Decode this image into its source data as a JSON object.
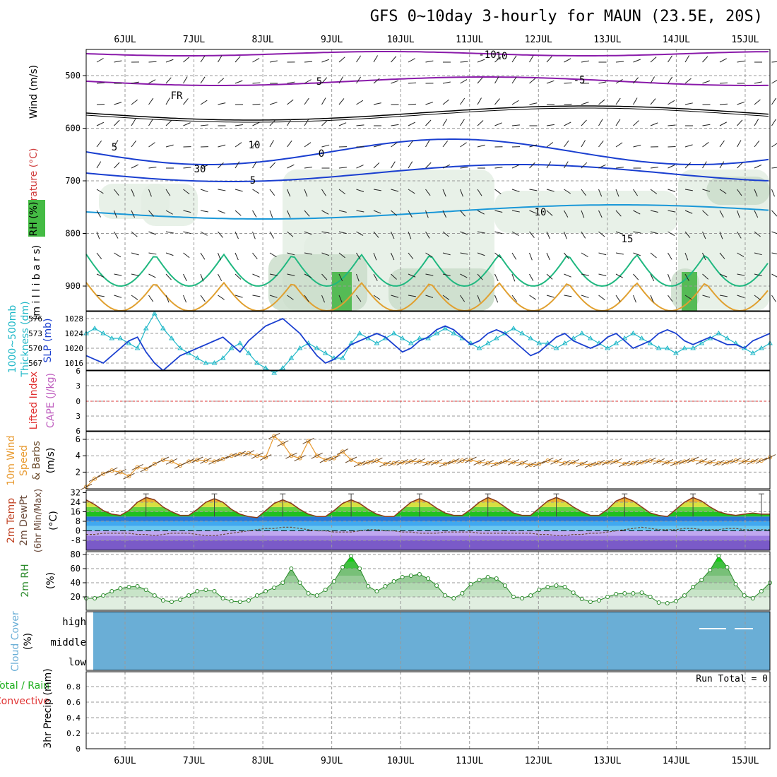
{
  "title": "GFS 0~10day 3-hourly for MAUN (23.5E, 20S)",
  "dates": [
    "6JUL",
    "7JUL",
    "8JUL",
    "9JUL",
    "10JUL",
    "11JUL",
    "12JUL",
    "13JUL",
    "14JUL",
    "15JUL"
  ],
  "panels": {
    "upper": {
      "labels": [
        "RH (%)",
        "Temperature (°C)",
        "Wind (m/s)",
        "(m i l l i b a r s)"
      ],
      "y_ticks": [
        500,
        600,
        700,
        800,
        900
      ],
      "contour_labels": [
        "10",
        "5",
        "FR",
        "5",
        "5",
        "10",
        "15",
        "-5",
        "-10",
        "30",
        "10",
        "0"
      ]
    },
    "slp": {
      "labels": [
        "1000~500mb",
        "Thickness (dm)",
        "SLP (mb)"
      ],
      "left_ticks": [
        576,
        573,
        570,
        567
      ],
      "right_ticks": [
        1028,
        1024,
        1020,
        1016
      ]
    },
    "cape": {
      "labels": [
        "Lifted Index",
        "CAPE (J/kg)"
      ],
      "ticks": [
        "6",
        "3",
        "0",
        "3",
        "6"
      ]
    },
    "wind10": {
      "labels": [
        "10m Wind",
        "Speed",
        "& Barbs",
        "(m/s)"
      ],
      "ticks": [
        6,
        4,
        2
      ]
    },
    "temp": {
      "labels": [
        "2m Temp",
        "2m DewPt",
        "(6hr Min/Max)",
        "(°C)"
      ],
      "ticks": [
        32,
        24,
        16,
        8,
        0,
        -8
      ]
    },
    "rh": {
      "labels": [
        "2m RH",
        "(%)"
      ],
      "ticks": [
        80,
        60,
        40,
        20
      ]
    },
    "cloud": {
      "labels": [
        "Cloud Cover",
        "(%)"
      ],
      "levels": [
        "high",
        "middle",
        "low"
      ]
    },
    "precip": {
      "labels": [
        "Total / Rain",
        "Convective",
        "3hr Precip (mm)"
      ],
      "run_total": "Run Total = 0",
      "ticks": [
        "0.8",
        "0.6",
        "0.4",
        "0.2",
        "0"
      ]
    }
  },
  "colors": {
    "thickness": "#20b8c8",
    "slp": "#1a3fd0",
    "wind": "#e89a30",
    "temp_line": "#8a3a1a",
    "rh_line": "#2a8a2a",
    "cloud": "#6aaed6"
  },
  "chart_data": [
    {
      "type": "line",
      "title": "1000~500mb Thickness / SLP",
      "series": [
        {
          "name": "1000~500mb Thickness (dm)",
          "values": [
            573,
            574,
            573,
            572,
            572,
            571,
            570,
            574,
            577,
            574,
            572,
            570,
            569,
            568,
            567,
            567,
            568,
            570,
            571,
            569,
            567,
            566,
            565,
            566,
            568,
            570,
            571,
            570,
            569,
            568,
            568,
            571,
            573,
            572,
            571,
            572,
            573,
            572,
            571,
            572,
            572,
            573,
            574,
            573,
            572,
            571,
            570,
            571,
            572,
            573,
            574,
            573,
            572,
            571,
            571,
            570,
            571,
            572,
            573,
            572,
            571,
            570,
            571,
            572,
            573,
            572,
            571,
            570,
            570,
            569,
            570,
            570,
            571,
            572,
            573,
            572,
            571,
            570,
            569,
            570,
            571
          ]
        },
        {
          "name": "SLP (mb)",
          "values": [
            1018,
            1017,
            1016,
            1018,
            1020,
            1022,
            1023,
            1019,
            1016,
            1014,
            1016,
            1018,
            1019,
            1020,
            1021,
            1022,
            1023,
            1021,
            1019,
            1022,
            1024,
            1026,
            1027,
            1028,
            1026,
            1024,
            1021,
            1018,
            1016,
            1017,
            1019,
            1021,
            1022,
            1023,
            1024,
            1023,
            1021,
            1019,
            1020,
            1022,
            1023,
            1025,
            1026,
            1025,
            1023,
            1021,
            1022,
            1024,
            1025,
            1024,
            1022,
            1020,
            1018,
            1019,
            1021,
            1023,
            1024,
            1022,
            1021,
            1020,
            1021,
            1023,
            1024,
            1022,
            1020,
            1021,
            1022,
            1024,
            1025,
            1024,
            1022,
            1021,
            1022,
            1023,
            1022,
            1021,
            1021,
            1020,
            1022,
            1023,
            1024
          ]
        }
      ]
    },
    {
      "type": "line",
      "title": "10m Wind Speed (m/s)",
      "series": [
        {
          "name": "10m Wind Speed",
          "values": [
            0.2,
            1.2,
            1.8,
            2.2,
            2.0,
            1.5,
            2.6,
            2.4,
            3.0,
            3.5,
            3.3,
            2.8,
            3.3,
            3.5,
            3.4,
            3.3,
            3.6,
            4.0,
            4.2,
            4.3,
            4.0,
            3.8,
            6.4,
            5.5,
            4.0,
            3.7,
            5.8,
            4.0,
            3.5,
            3.7,
            4.5,
            3.5,
            3.0,
            3.2,
            3.4,
            3.0,
            3.1,
            3.2,
            3.3,
            3.3,
            3.1,
            3.2,
            3.0,
            3.3,
            3.4,
            3.5,
            3.2,
            3.1,
            3.0,
            3.3,
            3.2,
            3.1,
            2.9,
            3.0,
            3.4,
            3.3,
            3.1,
            3.2,
            3.0,
            2.9,
            3.1,
            3.2,
            3.3,
            3.0,
            3.1,
            3.2,
            3.4,
            3.3,
            3.2,
            3.1,
            3.3,
            3.5,
            3.3,
            3.2,
            3.1,
            3.2,
            3.4,
            3.3,
            3.3,
            3.4,
            3.8
          ]
        }
      ]
    },
    {
      "type": "line",
      "title": "2m Temp / DewPt (°C)",
      "series": [
        {
          "name": "2m Temp",
          "values": [
            26,
            22,
            17,
            14,
            13,
            17,
            24,
            28,
            26,
            20,
            16,
            13,
            13,
            18,
            24,
            27,
            24,
            18,
            14,
            12,
            11,
            17,
            23,
            26,
            23,
            18,
            14,
            12,
            12,
            17,
            23,
            26,
            23,
            18,
            14,
            12,
            12,
            18,
            24,
            27,
            24,
            19,
            15,
            13,
            13,
            18,
            24,
            28,
            25,
            20,
            15,
            13,
            13,
            19,
            25,
            28,
            25,
            20,
            16,
            13,
            13,
            18,
            25,
            28,
            25,
            20,
            15,
            13,
            12,
            18,
            24,
            28,
            25,
            20,
            16,
            14,
            13,
            14,
            15,
            14,
            14
          ]
        },
        {
          "name": "2m DewPt",
          "values": [
            -3,
            -3,
            -2,
            -2,
            -2,
            -2,
            -3,
            -3,
            -4,
            -3,
            -2,
            -2,
            -2,
            -3,
            -4,
            -4,
            -3,
            -2,
            -1,
            0,
            1,
            2,
            2,
            3,
            3,
            2,
            1,
            0,
            0,
            -1,
            -1,
            -1,
            0,
            1,
            1,
            0,
            0,
            -1,
            -1,
            -2,
            -2,
            -2,
            -1,
            -1,
            -1,
            -1,
            -2,
            -2,
            -2,
            -2,
            -2,
            -2,
            -2,
            -3,
            -3,
            -4,
            -4,
            -3,
            -3,
            -2,
            -2,
            -1,
            0,
            1,
            2,
            3,
            2,
            1,
            1,
            1,
            2,
            2,
            1,
            1,
            1,
            2,
            2,
            1,
            1,
            1,
            1
          ]
        }
      ]
    },
    {
      "type": "area",
      "title": "2m RH (%)",
      "series": [
        {
          "name": "2m RH",
          "values": [
            18,
            18,
            22,
            28,
            32,
            34,
            35,
            30,
            22,
            15,
            13,
            16,
            22,
            28,
            30,
            28,
            18,
            14,
            13,
            15,
            22,
            28,
            33,
            40,
            60,
            40,
            25,
            22,
            30,
            42,
            62,
            78,
            60,
            35,
            28,
            35,
            42,
            48,
            50,
            52,
            46,
            36,
            22,
            18,
            25,
            38,
            44,
            48,
            46,
            36,
            20,
            18,
            22,
            30,
            34,
            36,
            34,
            26,
            17,
            13,
            15,
            20,
            24,
            25,
            25,
            26,
            20,
            12,
            11,
            14,
            22,
            34,
            44,
            58,
            78,
            62,
            38,
            22,
            18,
            28,
            40
          ]
        }
      ]
    }
  ]
}
